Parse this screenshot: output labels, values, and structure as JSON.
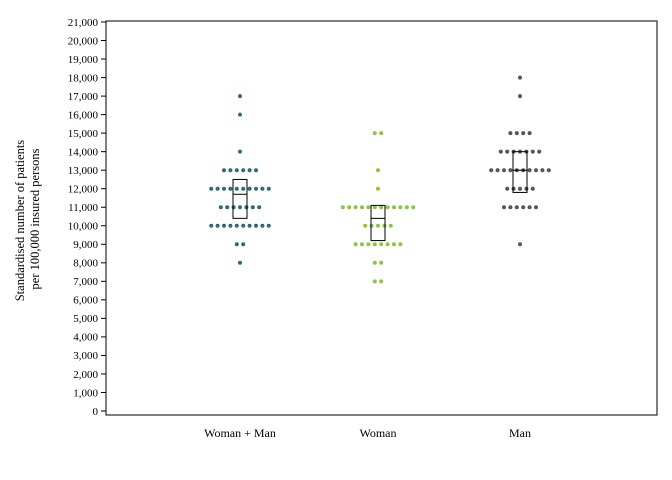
{
  "chart_data": {
    "type": "scatter",
    "subtype": "dot-strip-plot-with-boxes",
    "ylabel": [
      "Standardised number of patients",
      "per 100,000 insured persons"
    ],
    "ylim": [
      0,
      21000
    ],
    "yticks": [
      0,
      1000,
      2000,
      3000,
      4000,
      5000,
      6000,
      7000,
      8000,
      9000,
      10000,
      11000,
      12000,
      13000,
      14000,
      15000,
      16000,
      17000,
      18000,
      19000,
      20000,
      21000
    ],
    "ytick_labels": [
      "0",
      "1,000",
      "2,000",
      "3,000",
      "4,000",
      "5,000",
      "6,000",
      "7,000",
      "8,000",
      "9,000",
      "10,000",
      "11,000",
      "12,000",
      "13,000",
      "14,000",
      "15,000",
      "16,000",
      "17,000",
      "18,000",
      "19,000",
      "20,000",
      "21,000"
    ],
    "categories": [
      "Woman + Man",
      "Woman",
      "Man"
    ],
    "grid": false,
    "series": [
      {
        "category": "Woman + Man",
        "color": "#2a6b76",
        "points": [
          {
            "y": 17000,
            "n": 1
          },
          {
            "y": 16000,
            "n": 1
          },
          {
            "y": 14000,
            "n": 1
          },
          {
            "y": 13000,
            "n": 6
          },
          {
            "y": 12000,
            "n": 10
          },
          {
            "y": 11000,
            "n": 7
          },
          {
            "y": 10000,
            "n": 10
          },
          {
            "y": 9000,
            "n": 2
          },
          {
            "y": 8000,
            "n": 1
          }
        ],
        "box": {
          "q1": 10400,
          "median": 11700,
          "q3": 12500
        }
      },
      {
        "category": "Woman",
        "color": "#8cc63e",
        "points": [
          {
            "y": 15000,
            "n": 2
          },
          {
            "y": 13000,
            "n": 1
          },
          {
            "y": 12000,
            "n": 1
          },
          {
            "y": 11000,
            "n": 12
          },
          {
            "y": 10000,
            "n": 5
          },
          {
            "y": 9000,
            "n": 8
          },
          {
            "y": 8000,
            "n": 2
          },
          {
            "y": 7000,
            "n": 2
          }
        ],
        "box": {
          "q1": 9200,
          "median": 10400,
          "q3": 11100
        }
      },
      {
        "category": "Man",
        "color": "#555555",
        "points": [
          {
            "y": 18000,
            "n": 1
          },
          {
            "y": 17000,
            "n": 1
          },
          {
            "y": 15000,
            "n": 4
          },
          {
            "y": 14000,
            "n": 7
          },
          {
            "y": 13000,
            "n": 10
          },
          {
            "y": 12000,
            "n": 5
          },
          {
            "y": 11000,
            "n": 6
          },
          {
            "y": 9000,
            "n": 1
          }
        ],
        "box": {
          "q1": 11800,
          "median": 13000,
          "q3": 14000
        }
      }
    ]
  }
}
